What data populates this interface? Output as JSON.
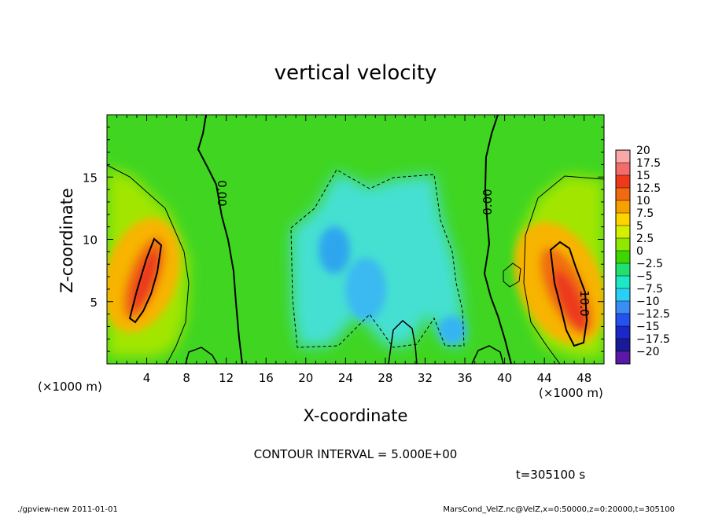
{
  "chart_data": {
    "type": "heatmap",
    "title": "vertical velocity",
    "xlabel": "X-coordinate",
    "ylabel": "Z-coordinate",
    "x_unit_label": "(×1000 m)",
    "y_unit_label": "(×1000 m)",
    "xlim": [
      0,
      50
    ],
    "ylim": [
      0,
      20
    ],
    "x_ticks": [
      4,
      8,
      12,
      16,
      20,
      24,
      28,
      32,
      36,
      40,
      44,
      48
    ],
    "y_ticks": [
      5,
      10,
      15
    ],
    "contour_interval_text": "CONTOUR INTERVAL = 5.000E+00",
    "contour_labels": [
      "0.00",
      "0.00",
      "10.0"
    ],
    "time_text": "t=305100 s",
    "colorbar": {
      "levels": [
        "20",
        "17.5",
        "15",
        "12.5",
        "10",
        "7.5",
        "5",
        "2.5",
        "0",
        "−2.5",
        "−5",
        "−7.5",
        "−10",
        "−12.5",
        "−15",
        "−17.5",
        "−20"
      ],
      "colors": [
        "#f9a8a8",
        "#f36b6b",
        "#ee3a1a",
        "#f26a10",
        "#f7a100",
        "#fcd400",
        "#d6ef00",
        "#8fe800",
        "#3ed600",
        "#21e070",
        "#1ee8c8",
        "#2ad0f4",
        "#3a8df2",
        "#2452f0",
        "#1a28c8",
        "#1a1a96",
        "#5a18a8"
      ]
    },
    "features": [
      {
        "kind": "updraft",
        "x_center": 3.5,
        "z_center": 6.5,
        "peak": 17
      },
      {
        "kind": "updraft",
        "x_center": 46.5,
        "z_center": 5.5,
        "peak": 16
      },
      {
        "kind": "downdraft",
        "x_center": 27,
        "z_center": 8,
        "min": -10
      }
    ]
  },
  "footer": {
    "left": "./gpview-new  2011-01-01",
    "right": "MarsCond_VelZ.nc@VelZ,x=0:50000,z=0:20000,t=305100"
  }
}
